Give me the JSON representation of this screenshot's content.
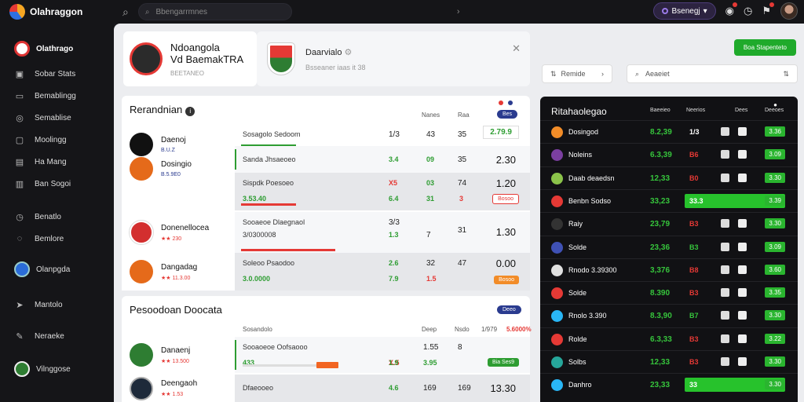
{
  "app": {
    "logo_text": "Olahraggon"
  },
  "search": {
    "placeholder": "Bbengarrmnes"
  },
  "top_user": {
    "label": "Bsenegj"
  },
  "sidebar": {
    "brand": "Olathrago",
    "items": [
      {
        "label": "Sobar Stats",
        "icon": "stats-icon"
      },
      {
        "label": "Bemablingg",
        "icon": "monitor-icon"
      },
      {
        "label": "Semablise",
        "icon": "globe-icon"
      },
      {
        "label": "Moolingg",
        "icon": "camera-icon"
      },
      {
        "label": "Ha Mang",
        "icon": "chart-icon"
      },
      {
        "label": "Ban Sogoi",
        "icon": "chart-bar-icon"
      },
      {
        "label": "Benatlo",
        "icon": "clock-icon"
      },
      {
        "label": "Bemlore",
        "icon": "chat-icon"
      },
      {
        "label": "Olanpgda",
        "icon": "team-icon"
      },
      {
        "label": "Mantolo",
        "icon": "send-icon"
      },
      {
        "label": "Neraeke",
        "icon": "pen-icon"
      },
      {
        "label": "Vilnggose",
        "icon": "team-icon"
      }
    ]
  },
  "hero": {
    "title_line1": "Ndoangola",
    "title_line2": "Vd BaemakTRA",
    "sub": "BEETANEO"
  },
  "hero2": {
    "title": "Daarvialo",
    "sub": "Bsseaner iaas it 38"
  },
  "section1": {
    "title": "Rerandnian",
    "headers": [
      "Nanes",
      "Raa"
    ],
    "button": "Bes",
    "rows": [
      {
        "team": "Daenoj",
        "sub": "B.U.Z",
        "label": "Sosagolo Sedoom",
        "green": "",
        "n1": "1/3",
        "n2": "43",
        "n3": "35",
        "g1": "",
        "g2": "",
        "g3": "",
        "big": "",
        "box": "2.79.9",
        "chip": ""
      },
      {
        "team": "",
        "sub": "",
        "label": "Sanda Jhsaeoeo",
        "green": "",
        "n1": "3.4",
        "n2": "09",
        "n3": "35",
        "g1": "",
        "g2": "",
        "g3": "",
        "big": "2.30",
        "box": "",
        "chip": ""
      },
      {
        "team": "Dosingio",
        "sub": "B.5.9E0",
        "label": "Sispdk Poesoeo",
        "green": "3.53.40",
        "n1": "X5",
        "n2": "03",
        "n3": "74",
        "g1": "6.4",
        "g2": "31",
        "g3": "3",
        "big": "1.20",
        "box": "",
        "chip": "Bosoo"
      },
      {
        "team": "Donenellocea",
        "sub": "★★ 230",
        "label": "Sooaeoe Dlaegnaol",
        "green": "3/0300008",
        "n1": "3/3",
        "n2": "",
        "n3": "",
        "g1": "1.3",
        "g2": "7",
        "g3": "31",
        "big": "1.30",
        "box": "",
        "chip": ""
      },
      {
        "team": "Dangadag",
        "sub": "★★ 11.3.00",
        "label": "Soleoo Psaodoo",
        "green": "3.0.0000",
        "n1": "2.6",
        "n2": "32",
        "n3": "47",
        "g1": "7.9",
        "g2": "1.5",
        "g3": "",
        "big": "0.00",
        "box": "",
        "chip": "Bosoo"
      }
    ]
  },
  "section2": {
    "title": "Pesoodoan Doocata",
    "headers": [
      "Sosandolo",
      "Deep",
      "Nsdo",
      "1/979",
      "5.6000%"
    ],
    "button": "Deeo",
    "rows": [
      {
        "team": "Danaenj",
        "sub": "★★ 13.500",
        "label": "Sooaoeoe Oofsaooo",
        "green": "433",
        "n1": "X.5",
        "n2": "1.55",
        "n3": "8",
        "g1": "1.9",
        "g2": "3.95",
        "g3": "",
        "big": "",
        "box": "",
        "chip": "Bia Ses9"
      },
      {
        "team": "Deengaoh",
        "sub": "★★ 1.53",
        "label": "Dfaeooeo",
        "green": "",
        "n1": "4.6",
        "n2": "169",
        "n3": "169",
        "g1": "",
        "g2": "",
        "g3": "",
        "big": "13.30",
        "box": "",
        "chip": ""
      }
    ]
  },
  "right": {
    "green_button": "Boa Stapenteto",
    "filter": "Remide",
    "search_placeholder": "Aeaeiet",
    "table_title": "Ritahaolegao",
    "headers": [
      "Baeeieo",
      "Neerios",
      "Dees",
      "Deeoes"
    ],
    "rows": [
      {
        "name": "Dosingod",
        "v1": "8.2,39",
        "v2": "1/3",
        "pill": "3.36",
        "hl": false,
        "logo_color": "#f28c28",
        "v2_color": "#ffffff"
      },
      {
        "name": "Noleins",
        "v1": "6.3,39",
        "v2": "B6",
        "pill": "3.09",
        "hl": false,
        "logo_color": "#7b3fa0",
        "v2_color": "#e53935"
      },
      {
        "name": "Daab deaedsn",
        "v1": "12,33",
        "v2": "B0",
        "pill": "3.30",
        "hl": false,
        "logo_color": "#8bc34a",
        "v2_color": "#e53935"
      },
      {
        "name": "Benbn Sodso",
        "v1": "33,23",
        "v2": "33.3",
        "pill": "3.39",
        "hl": true,
        "logo_color": "#e53935",
        "v2_color": "#ffffff"
      },
      {
        "name": "Raiy",
        "v1": "23,79",
        "v2": "B3",
        "pill": "3.30",
        "hl": false,
        "logo_color": "#333333",
        "v2_color": "#e53935"
      },
      {
        "name": "Solde",
        "v1": "23,36",
        "v2": "B3",
        "pill": "3.09",
        "hl": false,
        "logo_color": "#3f51b5",
        "v2_color": "#36c43c"
      },
      {
        "name": "Rnodo 3.39300",
        "v1": "3,376",
        "v2": "B8",
        "pill": "3.60",
        "hl": false,
        "logo_color": "#e0e0e0",
        "v2_color": "#e53935"
      },
      {
        "name": "Solde",
        "v1": "8.390",
        "v2": "B3",
        "pill": "3.35",
        "hl": false,
        "logo_color": "#e53935",
        "v2_color": "#e53935"
      },
      {
        "name": "Rnolo 3.390",
        "v1": "8.3,90",
        "v2": "B7",
        "pill": "3.30",
        "hl": false,
        "logo_color": "#29b6f6",
        "v2_color": "#36c43c"
      },
      {
        "name": "Rolde",
        "v1": "6.3,33",
        "v2": "B3",
        "pill": "3.22",
        "hl": false,
        "logo_color": "#e53935",
        "v2_color": "#e53935"
      },
      {
        "name": "Solbs",
        "v1": "12,33",
        "v2": "B3",
        "pill": "3.30",
        "hl": false,
        "logo_color": "#26a69a",
        "v2_color": "#e53935"
      },
      {
        "name": "Danhro",
        "v1": "23,33",
        "v2": "33",
        "pill": "3.30",
        "hl": true,
        "logo_color": "#29b6f6",
        "v2_color": "#ffffff"
      }
    ]
  }
}
